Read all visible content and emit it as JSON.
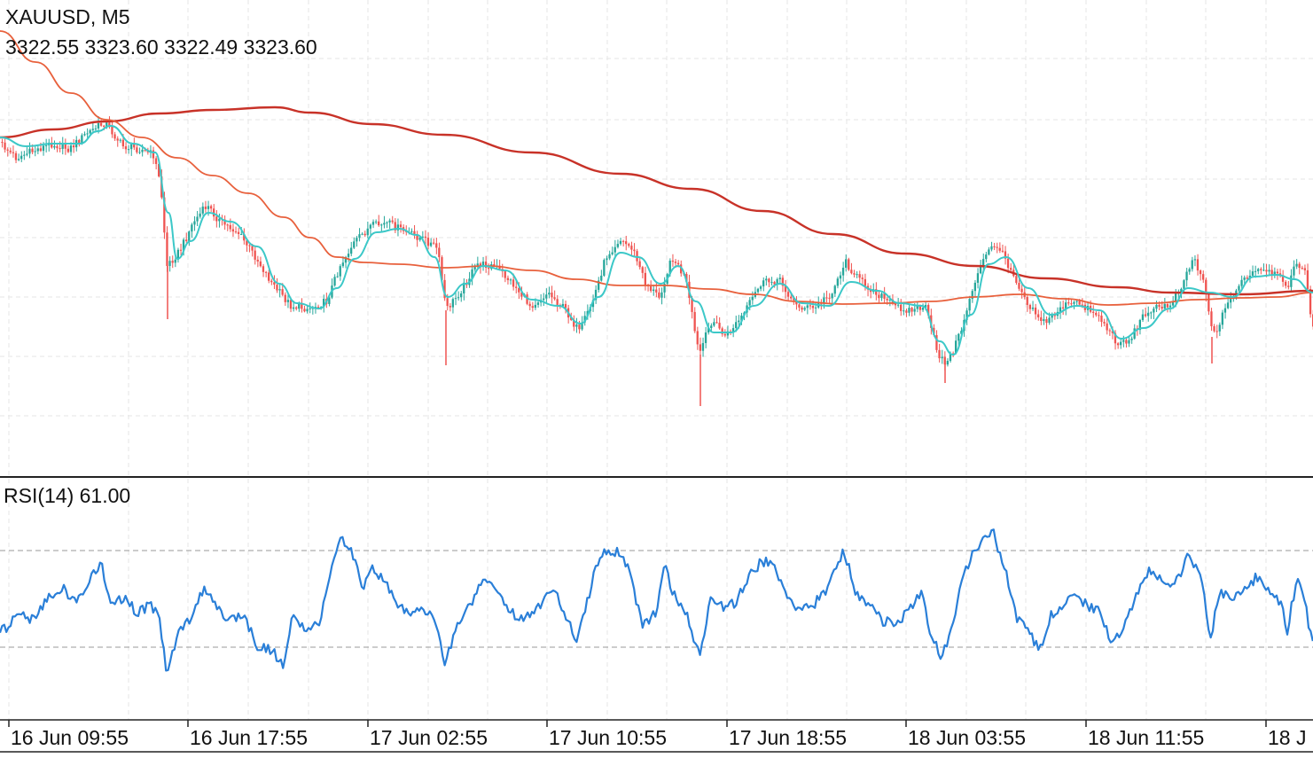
{
  "header": {
    "symbol_timeframe": "XAUUSD, M5",
    "ohlc": "3322.55 3323.60 3322.49 3323.60"
  },
  "indicator": {
    "label": "RSI(14) 61.00"
  },
  "x_axis": {
    "ticks": [
      "16 Jun 09:55",
      "16 Jun 17:55",
      "17 Jun 02:55",
      "17 Jun 10:55",
      "17 Jun 18:55",
      "18 Jun 03:55",
      "18 Jun 11:55",
      "18 J"
    ]
  },
  "colors": {
    "bull": "#26a69a",
    "bear": "#ef5350",
    "ma_fast": "#3cc8c8",
    "ma_mid": "#e8603c",
    "ma_slow": "#c83228",
    "rsi": "#2a7fd8",
    "grid": "#e6e6e6",
    "level": "#9a9a9a"
  },
  "chart_data": [
    {
      "type": "candlestick",
      "symbol": "XAUUSD",
      "timeframe": "M5",
      "last_bar": {
        "open": 3322.55,
        "high": 3323.6,
        "low": 3322.49,
        "close": 3323.6
      },
      "x_ticks": [
        "16 Jun 09:55",
        "16 Jun 17:55",
        "17 Jun 02:55",
        "17 Jun 10:55",
        "17 Jun 18:55",
        "18 Jun 03:55",
        "18 Jun 11:55",
        "18 J"
      ],
      "price_path": [
        [
          0,
          160
        ],
        [
          20,
          178
        ],
        [
          40,
          170
        ],
        [
          60,
          162
        ],
        [
          80,
          168
        ],
        [
          100,
          150
        ],
        [
          120,
          138
        ],
        [
          140,
          165
        ],
        [
          160,
          168
        ],
        [
          175,
          175
        ],
        [
          183,
          210
        ],
        [
          190,
          300
        ],
        [
          205,
          282
        ],
        [
          220,
          250
        ],
        [
          235,
          232
        ],
        [
          250,
          250
        ],
        [
          270,
          262
        ],
        [
          290,
          290
        ],
        [
          310,
          322
        ],
        [
          330,
          345
        ],
        [
          350,
          348
        ],
        [
          370,
          340
        ],
        [
          385,
          300
        ],
        [
          400,
          275
        ],
        [
          420,
          255
        ],
        [
          440,
          252
        ],
        [
          460,
          262
        ],
        [
          480,
          270
        ],
        [
          495,
          280
        ],
        [
          505,
          350
        ],
        [
          520,
          330
        ],
        [
          540,
          298
        ],
        [
          560,
          300
        ],
        [
          580,
          320
        ],
        [
          600,
          345
        ],
        [
          620,
          330
        ],
        [
          640,
          350
        ],
        [
          655,
          375
        ],
        [
          670,
          340
        ],
        [
          685,
          290
        ],
        [
          700,
          270
        ],
        [
          715,
          280
        ],
        [
          730,
          320
        ],
        [
          745,
          335
        ],
        [
          760,
          290
        ],
        [
          775,
          315
        ],
        [
          790,
          400
        ],
        [
          805,
          360
        ],
        [
          820,
          380
        ],
        [
          840,
          355
        ],
        [
          860,
          320
        ],
        [
          880,
          315
        ],
        [
          900,
          345
        ],
        [
          920,
          348
        ],
        [
          940,
          330
        ],
        [
          955,
          295
        ],
        [
          970,
          315
        ],
        [
          990,
          330
        ],
        [
          1010,
          345
        ],
        [
          1030,
          350
        ],
        [
          1045,
          345
        ],
        [
          1060,
          400
        ],
        [
          1070,
          410
        ],
        [
          1085,
          375
        ],
        [
          1100,
          320
        ],
        [
          1115,
          285
        ],
        [
          1125,
          275
        ],
        [
          1140,
          300
        ],
        [
          1160,
          340
        ],
        [
          1180,
          365
        ],
        [
          1200,
          345
        ],
        [
          1220,
          342
        ],
        [
          1240,
          355
        ],
        [
          1260,
          385
        ],
        [
          1275,
          385
        ],
        [
          1295,
          350
        ],
        [
          1320,
          345
        ],
        [
          1335,
          320
        ],
        [
          1348,
          290
        ],
        [
          1360,
          318
        ],
        [
          1370,
          380
        ],
        [
          1385,
          345
        ],
        [
          1400,
          320
        ],
        [
          1420,
          305
        ],
        [
          1440,
          310
        ],
        [
          1455,
          320
        ],
        [
          1465,
          295
        ],
        [
          1475,
          310
        ],
        [
          1481,
          370
        ]
      ],
      "ma_fast_path": [
        [
          0,
          155
        ],
        [
          30,
          165
        ],
        [
          60,
          162
        ],
        [
          90,
          162
        ],
        [
          110,
          148
        ],
        [
          125,
          142
        ],
        [
          150,
          162
        ],
        [
          175,
          172
        ],
        [
          190,
          240
        ],
        [
          200,
          292
        ],
        [
          215,
          272
        ],
        [
          235,
          240
        ],
        [
          260,
          250
        ],
        [
          290,
          278
        ],
        [
          315,
          320
        ],
        [
          335,
          342
        ],
        [
          360,
          348
        ],
        [
          380,
          325
        ],
        [
          400,
          292
        ],
        [
          425,
          262
        ],
        [
          450,
          258
        ],
        [
          470,
          265
        ],
        [
          490,
          290
        ],
        [
          505,
          335
        ],
        [
          525,
          320
        ],
        [
          545,
          300
        ],
        [
          570,
          305
        ],
        [
          600,
          338
        ],
        [
          630,
          345
        ],
        [
          655,
          365
        ],
        [
          675,
          335
        ],
        [
          700,
          285
        ],
        [
          720,
          290
        ],
        [
          745,
          320
        ],
        [
          765,
          300
        ],
        [
          785,
          340
        ],
        [
          805,
          375
        ],
        [
          825,
          375
        ],
        [
          850,
          345
        ],
        [
          880,
          320
        ],
        [
          905,
          342
        ],
        [
          935,
          345
        ],
        [
          960,
          318
        ],
        [
          990,
          328
        ],
        [
          1015,
          342
        ],
        [
          1040,
          345
        ],
        [
          1060,
          385
        ],
        [
          1075,
          400
        ],
        [
          1095,
          355
        ],
        [
          1115,
          298
        ],
        [
          1135,
          290
        ],
        [
          1160,
          325
        ],
        [
          1185,
          355
        ],
        [
          1215,
          345
        ],
        [
          1240,
          350
        ],
        [
          1265,
          382
        ],
        [
          1290,
          370
        ],
        [
          1320,
          348
        ],
        [
          1340,
          325
        ],
        [
          1365,
          330
        ],
        [
          1390,
          335
        ],
        [
          1415,
          312
        ],
        [
          1440,
          310
        ],
        [
          1460,
          315
        ],
        [
          1481,
          330
        ]
      ],
      "ma_mid_path": [
        [
          0,
          35
        ],
        [
          40,
          70
        ],
        [
          80,
          105
        ],
        [
          120,
          135
        ],
        [
          160,
          155
        ],
        [
          200,
          178
        ],
        [
          240,
          198
        ],
        [
          280,
          218
        ],
        [
          320,
          245
        ],
        [
          350,
          268
        ],
        [
          380,
          290
        ],
        [
          410,
          296
        ],
        [
          450,
          298
        ],
        [
          500,
          302
        ],
        [
          550,
          300
        ],
        [
          600,
          305
        ],
        [
          650,
          315
        ],
        [
          700,
          322
        ],
        [
          750,
          322
        ],
        [
          800,
          326
        ],
        [
          850,
          332
        ],
        [
          900,
          340
        ],
        [
          950,
          343
        ],
        [
          1000,
          342
        ],
        [
          1050,
          340
        ],
        [
          1100,
          335
        ],
        [
          1150,
          332
        ],
        [
          1200,
          337
        ],
        [
          1250,
          344
        ],
        [
          1300,
          342
        ],
        [
          1350,
          338
        ],
        [
          1400,
          336
        ],
        [
          1440,
          335
        ],
        [
          1481,
          330
        ]
      ],
      "ma_slow_path": [
        [
          0,
          155
        ],
        [
          60,
          146
        ],
        [
          120,
          137
        ],
        [
          180,
          128
        ],
        [
          240,
          124
        ],
        [
          310,
          121
        ],
        [
          350,
          127
        ],
        [
          420,
          140
        ],
        [
          500,
          152
        ],
        [
          600,
          172
        ],
        [
          700,
          196
        ],
        [
          780,
          213
        ],
        [
          860,
          238
        ],
        [
          940,
          264
        ],
        [
          1020,
          286
        ],
        [
          1100,
          300
        ],
        [
          1180,
          314
        ],
        [
          1260,
          324
        ],
        [
          1320,
          330
        ],
        [
          1400,
          332
        ],
        [
          1481,
          328
        ]
      ]
    },
    {
      "type": "line",
      "title": "RSI(14) 61.00",
      "current_value": 61.0,
      "levels": [
        70,
        30
      ],
      "path": [
        [
          0,
          712
        ],
        [
          10,
          705
        ],
        [
          20,
          690
        ],
        [
          35,
          700
        ],
        [
          50,
          680
        ],
        [
          70,
          662
        ],
        [
          85,
          680
        ],
        [
          100,
          655
        ],
        [
          115,
          638
        ],
        [
          125,
          685
        ],
        [
          140,
          672
        ],
        [
          155,
          692
        ],
        [
          170,
          682
        ],
        [
          180,
          698
        ],
        [
          188,
          760
        ],
        [
          200,
          718
        ],
        [
          215,
          698
        ],
        [
          230,
          662
        ],
        [
          245,
          688
        ],
        [
          260,
          698
        ],
        [
          275,
          695
        ],
        [
          290,
          728
        ],
        [
          305,
          732
        ],
        [
          320,
          752
        ],
        [
          330,
          695
        ],
        [
          345,
          712
        ],
        [
          360,
          705
        ],
        [
          370,
          655
        ],
        [
          385,
          605
        ],
        [
          400,
          628
        ],
        [
          410,
          665
        ],
        [
          420,
          640
        ],
        [
          435,
          660
        ],
        [
          450,
          682
        ],
        [
          465,
          692
        ],
        [
          480,
          688
        ],
        [
          490,
          695
        ],
        [
          502,
          752
        ],
        [
          515,
          705
        ],
        [
          530,
          685
        ],
        [
          545,
          652
        ],
        [
          560,
          668
        ],
        [
          575,
          690
        ],
        [
          590,
          700
        ],
        [
          605,
          685
        ],
        [
          625,
          665
        ],
        [
          640,
          698
        ],
        [
          650,
          722
        ],
        [
          660,
          690
        ],
        [
          670,
          648
        ],
        [
          680,
          622
        ],
        [
          695,
          622
        ],
        [
          705,
          632
        ],
        [
          715,
          665
        ],
        [
          725,
          708
        ],
        [
          740,
          690
        ],
        [
          750,
          640
        ],
        [
          760,
          670
        ],
        [
          775,
          695
        ],
        [
          790,
          742
        ],
        [
          802,
          670
        ],
        [
          815,
          685
        ],
        [
          830,
          680
        ],
        [
          845,
          650
        ],
        [
          860,
          632
        ],
        [
          875,
          640
        ],
        [
          890,
          678
        ],
        [
          905,
          690
        ],
        [
          920,
          680
        ],
        [
          935,
          660
        ],
        [
          952,
          622
        ],
        [
          965,
          668
        ],
        [
          980,
          680
        ],
        [
          995,
          700
        ],
        [
          1010,
          702
        ],
        [
          1025,
          690
        ],
        [
          1040,
          665
        ],
        [
          1050,
          718
        ],
        [
          1063,
          742
        ],
        [
          1075,
          698
        ],
        [
          1090,
          640
        ],
        [
          1105,
          612
        ],
        [
          1120,
          598
        ],
        [
          1135,
          648
        ],
        [
          1148,
          700
        ],
        [
          1160,
          712
        ],
        [
          1172,
          735
        ],
        [
          1185,
          695
        ],
        [
          1195,
          690
        ],
        [
          1210,
          670
        ],
        [
          1225,
          682
        ],
        [
          1240,
          690
        ],
        [
          1255,
          725
        ],
        [
          1268,
          710
        ],
        [
          1280,
          672
        ],
        [
          1295,
          645
        ],
        [
          1310,
          655
        ],
        [
          1325,
          660
        ],
        [
          1340,
          628
        ],
        [
          1355,
          650
        ],
        [
          1365,
          722
        ],
        [
          1375,
          668
        ],
        [
          1390,
          672
        ],
        [
          1405,
          660
        ],
        [
          1420,
          650
        ],
        [
          1435,
          668
        ],
        [
          1445,
          680
        ],
        [
          1452,
          712
        ],
        [
          1463,
          650
        ],
        [
          1472,
          680
        ],
        [
          1481,
          730
        ]
      ]
    }
  ]
}
